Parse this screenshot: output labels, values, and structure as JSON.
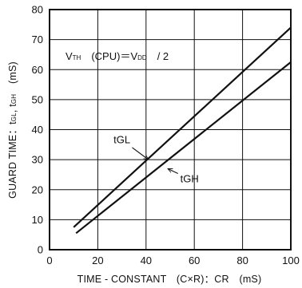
{
  "chart_data": {
    "type": "line",
    "xlabel": "TIME - CONSTANT　(C×R)：CR　(mS)",
    "ylabel": {
      "prefix": "GUARD TIME：t",
      "sub1": "GL",
      "mid": ", t",
      "sub2": "GH",
      "suffix": "　(mS)"
    },
    "annotation": {
      "p1": "V",
      "s1": "TH",
      "p2": "　(CPU)＝V",
      "s2": "DD",
      "p3": "　/ 2"
    },
    "xlim": [
      0,
      100
    ],
    "ylim": [
      0,
      80
    ],
    "x_ticks": [
      "0",
      "20",
      "40",
      "60",
      "80",
      "100"
    ],
    "y_ticks": [
      "0",
      "10",
      "20",
      "30",
      "40",
      "50",
      "60",
      "70",
      "80"
    ],
    "grid": true,
    "series": [
      {
        "name": "tGL",
        "x": [
          10,
          100
        ],
        "y": [
          7.5,
          74
        ]
      },
      {
        "name": "tGH",
        "x": [
          11,
          100
        ],
        "y": [
          5.5,
          62.5
        ]
      }
    ],
    "series_labels": [
      {
        "text": "tGL",
        "at": [
          30,
          35.5
        ],
        "arrow_to": [
          41,
          30
        ]
      },
      {
        "text": "tGH",
        "at": [
          58,
          22.5
        ],
        "arrow_to": [
          49,
          27
        ]
      }
    ]
  }
}
